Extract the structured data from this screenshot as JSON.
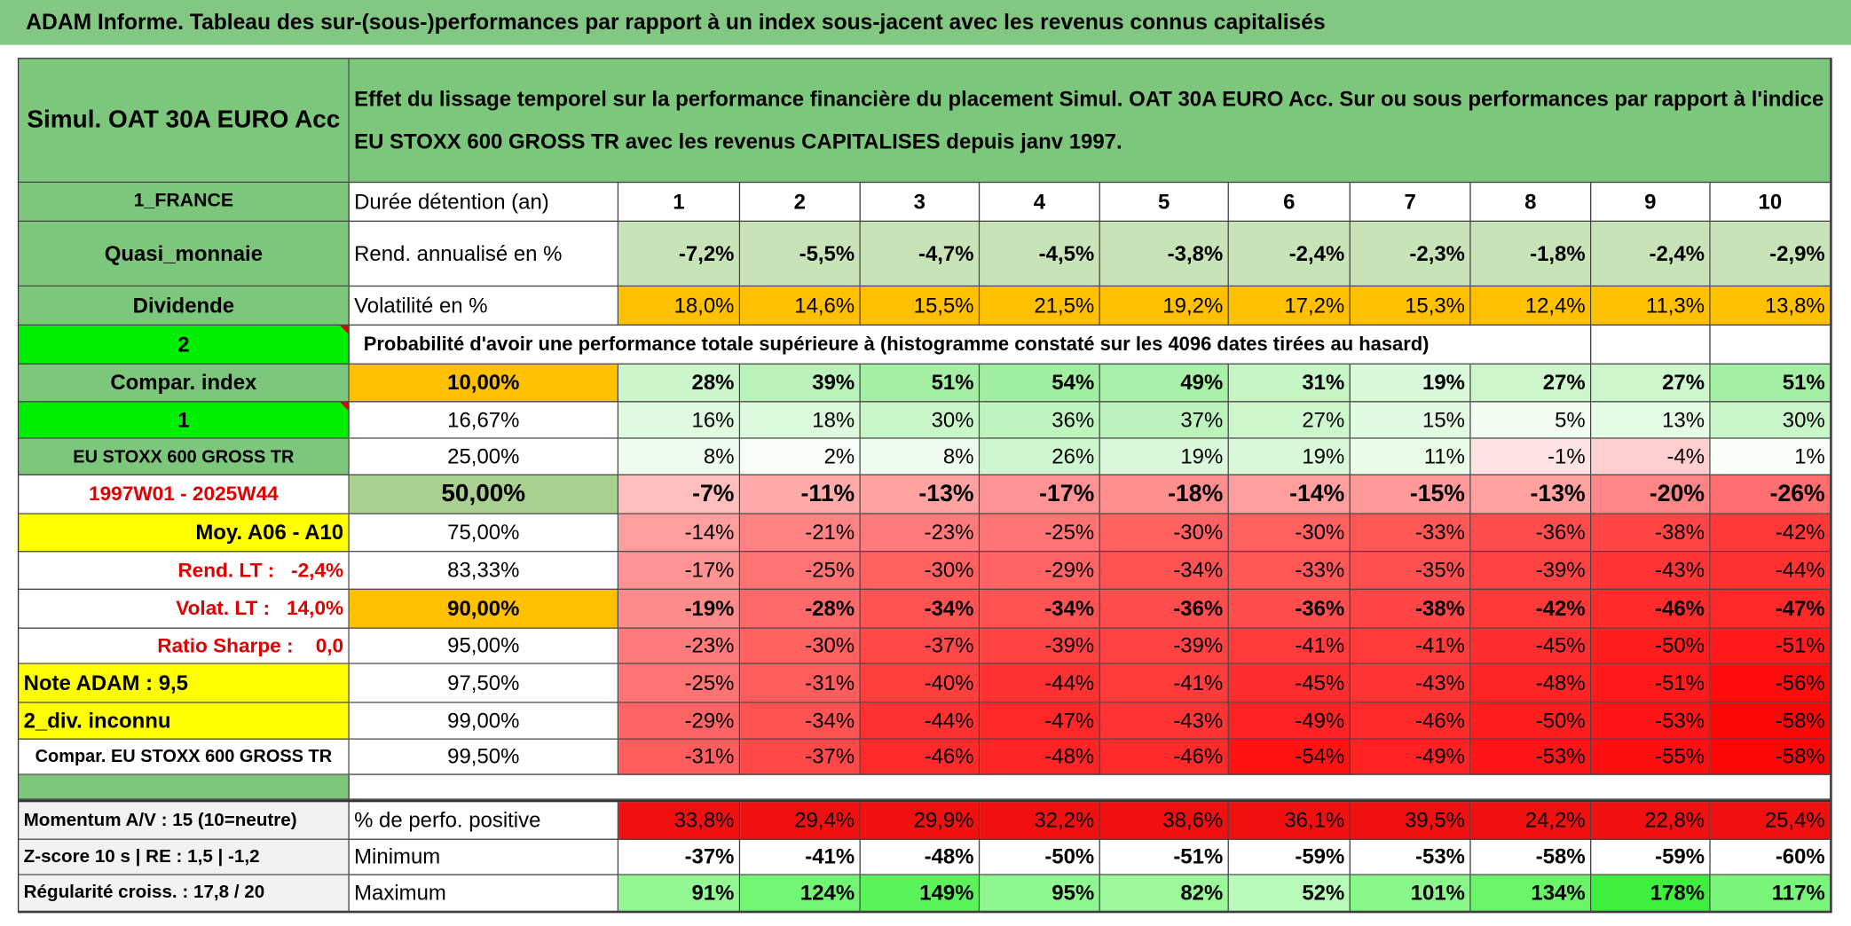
{
  "header": {
    "title": "ADAM Informe. Tableau des sur-(sous-)performances par rapport à un index sous-jacent avec les revenus connus capitalisés"
  },
  "table": {
    "rows": [
      [
        "Simul. OAT 30A EURO Acc",
        "Effet du lissage temporel sur la performance financière du placement Simul. OAT 30A EURO Acc. Sur ou sous performances par rapport à l'indice EU STOXX 600 GROSS TR avec les revenus CAPITALISES depuis janv 1997."
      ],
      [
        "1_FRANCE",
        "Durée détention (an)",
        "1",
        "2",
        "3",
        "4",
        "5",
        "6",
        "7",
        "8",
        "9",
        "10"
      ],
      [
        "Quasi_monnaie",
        "Rend. annualisé en %",
        "-7,2%",
        "-5,5%",
        "-4,7%",
        "-4,5%",
        "-3,8%",
        "-2,4%",
        "-2,3%",
        "-1,8%",
        "-2,4%",
        "-2,9%"
      ],
      [
        "Dividende",
        "Volatilité en %",
        "18,0%",
        "14,6%",
        "15,5%",
        "21,5%",
        "19,2%",
        "17,2%",
        "15,3%",
        "12,4%",
        "11,3%",
        "13,8%"
      ],
      [
        "2",
        "Probabilité d'avoir une performance totale supérieure à (histogramme constaté sur les 4096 dates tirées au hasard)"
      ],
      [
        "Compar. index",
        "10,00%",
        "28%",
        "39%",
        "51%",
        "54%",
        "49%",
        "31%",
        "19%",
        "27%",
        "27%",
        "51%"
      ],
      [
        "1",
        "16,67%",
        "16%",
        "18%",
        "30%",
        "36%",
        "37%",
        "27%",
        "15%",
        "5%",
        "13%",
        "30%"
      ],
      [
        "EU STOXX 600 GROSS TR",
        "25,00%",
        "8%",
        "2%",
        "8%",
        "26%",
        "19%",
        "19%",
        "11%",
        "-1%",
        "-4%",
        "1%"
      ],
      [
        "1997W01 - 2025W44",
        "50,00%",
        "-7%",
        "-11%",
        "-13%",
        "-17%",
        "-18%",
        "-14%",
        "-15%",
        "-13%",
        "-20%",
        "-26%"
      ],
      [
        "Moy. A06 - A10",
        "75,00%",
        "-14%",
        "-21%",
        "-23%",
        "-25%",
        "-30%",
        "-30%",
        "-33%",
        "-36%",
        "-38%",
        "-42%"
      ],
      [
        "Rend. LT :   -2,4%",
        "83,33%",
        "-17%",
        "-25%",
        "-30%",
        "-29%",
        "-34%",
        "-33%",
        "-35%",
        "-39%",
        "-43%",
        "-44%"
      ],
      [
        "Volat. LT :   14,0%",
        "90,00%",
        "-19%",
        "-28%",
        "-34%",
        "-34%",
        "-36%",
        "-36%",
        "-38%",
        "-42%",
        "-46%",
        "-47%"
      ],
      [
        "Ratio Sharpe :    0,0",
        "95,00%",
        "-23%",
        "-30%",
        "-37%",
        "-39%",
        "-39%",
        "-41%",
        "-41%",
        "-45%",
        "-50%",
        "-51%"
      ],
      [
        "Note ADAM : 9,5",
        "97,50%",
        "-25%",
        "-31%",
        "-40%",
        "-44%",
        "-41%",
        "-45%",
        "-43%",
        "-48%",
        "-51%",
        "-56%"
      ],
      [
        "2_div. inconnu",
        "99,00%",
        "-29%",
        "-34%",
        "-44%",
        "-47%",
        "-43%",
        "-49%",
        "-46%",
        "-50%",
        "-53%",
        "-58%"
      ],
      [
        "Compar. EU STOXX 600 GROSS TR",
        "99,50%",
        "-31%",
        "-37%",
        "-46%",
        "-48%",
        "-46%",
        "-54%",
        "-49%",
        "-53%",
        "-55%",
        "-58%"
      ]
    ]
  },
  "summary": {
    "rows": [
      [
        "Momentum A/V : 15 (10=neutre)",
        "% de perfo. positive",
        "33,8%",
        "29,4%",
        "29,9%",
        "32,2%",
        "38,6%",
        "36,1%",
        "39,5%",
        "24,2%",
        "22,8%",
        "25,4%"
      ],
      [
        "Z-score 10 s | RE : 1,5 | -1,2",
        "Minimum",
        "-37%",
        "-41%",
        "-48%",
        "-50%",
        "-51%",
        "-59%",
        "-53%",
        "-58%",
        "-59%",
        "-60%"
      ],
      [
        "Régularité croiss. : 17,8 / 20",
        "Maximum",
        "91%",
        "124%",
        "149%",
        "95%",
        "82%",
        "52%",
        "101%",
        "134%",
        "178%",
        "117%"
      ]
    ]
  }
}
